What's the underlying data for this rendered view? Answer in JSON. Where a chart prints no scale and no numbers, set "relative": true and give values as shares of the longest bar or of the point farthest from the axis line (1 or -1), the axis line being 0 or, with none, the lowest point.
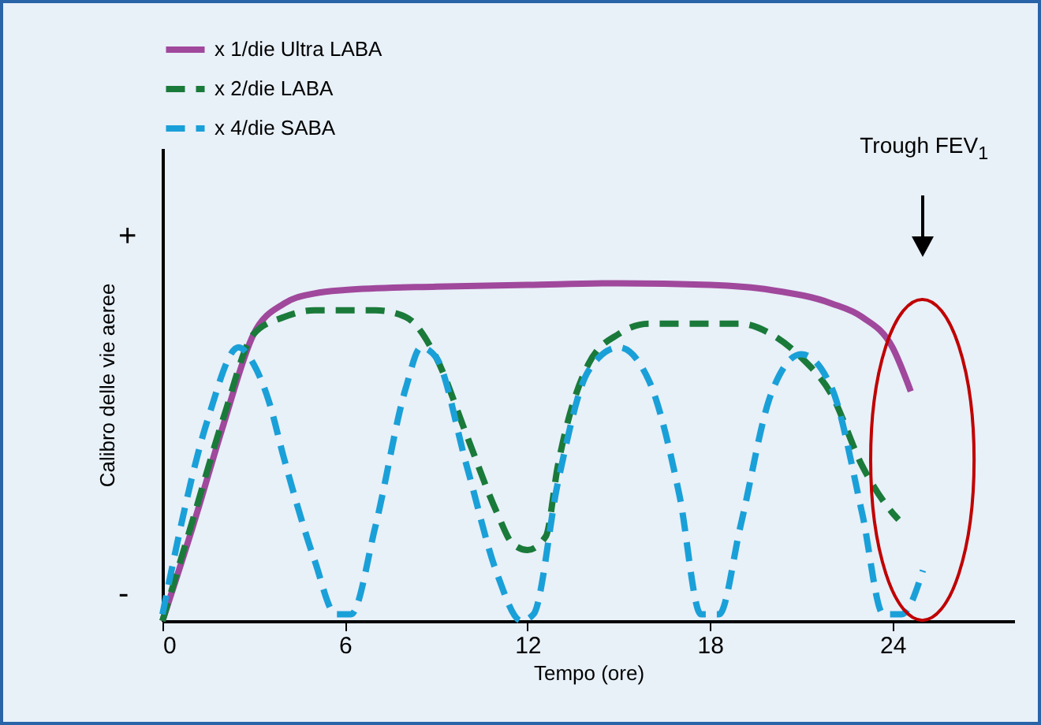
{
  "chart_data": {
    "type": "line",
    "relative": true,
    "xlabel": "Tempo (ore)",
    "ylabel": "Calibro delle vie aeree",
    "xlim": [
      0,
      28
    ],
    "xticks": [
      0,
      6,
      12,
      18,
      24
    ],
    "grid": false,
    "legend": "top",
    "marker": "none",
    "annotations": [
      "+",
      "-",
      "Trough FEV$_{1}$"
    ],
    "series": [
      {
        "name": "x 1/die Ultra LABA",
        "color": "#a0489c",
        "line_style": "solid",
        "x": [
          0,
          1,
          2,
          3,
          4,
          5,
          6,
          9,
          12,
          15,
          18,
          20,
          22,
          23,
          24,
          24.6
        ],
        "values": [
          0,
          0.28,
          0.58,
          0.85,
          0.94,
          0.97,
          0.98,
          0.99,
          0.995,
          1,
          0.995,
          0.98,
          0.94,
          0.9,
          0.81,
          0.68
        ]
      },
      {
        "name": "x 2/die LABA",
        "color": "#1a7a3a",
        "line_style": "dashed",
        "x": [
          0,
          1,
          2,
          3,
          4,
          5,
          6,
          7,
          8,
          9,
          10,
          11,
          11.5,
          12,
          12.6,
          13,
          14,
          15,
          16,
          18,
          19,
          20,
          21,
          22,
          23,
          24,
          24.2
        ],
        "values": [
          0,
          0.3,
          0.6,
          0.85,
          0.9,
          0.92,
          0.92,
          0.92,
          0.9,
          0.78,
          0.55,
          0.32,
          0.23,
          0.21,
          0.25,
          0.46,
          0.76,
          0.85,
          0.88,
          0.88,
          0.88,
          0.85,
          0.78,
          0.67,
          0.46,
          0.32,
          0.3
        ]
      },
      {
        "name": "x 4/die SABA",
        "color": "#1aa0d8",
        "line_style": "dashed",
        "x": [
          0,
          1.5,
          2.5,
          3,
          3.5,
          4,
          5,
          5.7,
          6.2,
          7,
          8,
          8.5,
          9,
          10,
          11,
          11.8,
          12.2,
          13,
          14,
          15,
          16,
          17,
          17.7,
          18.3,
          19,
          20,
          21,
          22,
          23,
          23.7,
          24.3,
          25
        ],
        "values": [
          0.02,
          0.6,
          0.81,
          0.76,
          0.65,
          0.48,
          0.18,
          0.02,
          0.02,
          0.28,
          0.69,
          0.81,
          0.78,
          0.46,
          0.14,
          0,
          0.02,
          0.41,
          0.74,
          0.81,
          0.71,
          0.37,
          0.02,
          0.02,
          0.28,
          0.67,
          0.79,
          0.69,
          0.32,
          0.02,
          0.02,
          0.15
        ]
      }
    ]
  }
}
